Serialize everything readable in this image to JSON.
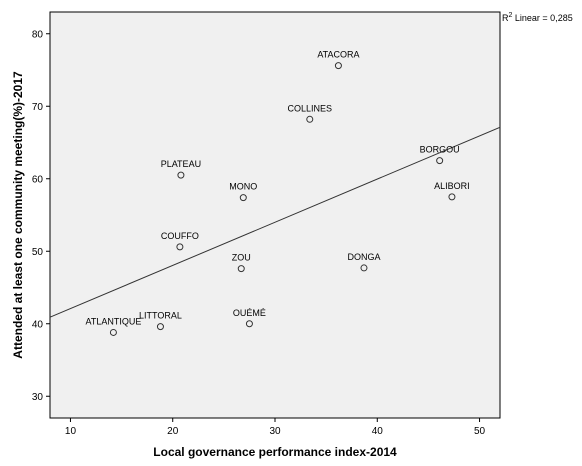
{
  "chart_data": {
    "type": "scatter",
    "title": "",
    "xlabel": "Local governance performance index-2014",
    "ylabel": "Attended at least one community meeting(%)-2017",
    "xlim": [
      8,
      52
    ],
    "ylim": [
      27,
      83
    ],
    "xticks": [
      10,
      20,
      30,
      40,
      50
    ],
    "yticks": [
      30,
      40,
      50,
      60,
      70,
      80
    ],
    "grid": false,
    "background": "#f0f0f0",
    "points": [
      {
        "label": "ATACORA",
        "x": 36.2,
        "y": 75.6
      },
      {
        "label": "COLLINES",
        "x": 33.4,
        "y": 68.2
      },
      {
        "label": "BORGOU",
        "x": 46.1,
        "y": 62.5
      },
      {
        "label": "PLATEAU",
        "x": 20.8,
        "y": 60.5
      },
      {
        "label": "MONO",
        "x": 26.9,
        "y": 57.4
      },
      {
        "label": "ALIBORI",
        "x": 47.3,
        "y": 57.5
      },
      {
        "label": "COUFFO",
        "x": 20.7,
        "y": 50.6
      },
      {
        "label": "ZOU",
        "x": 26.7,
        "y": 47.6
      },
      {
        "label": "DONGA",
        "x": 38.7,
        "y": 47.7
      },
      {
        "label": "OUÉMÉ",
        "x": 27.5,
        "y": 40.0
      },
      {
        "label": "LITTORAL",
        "x": 18.8,
        "y": 39.6
      },
      {
        "label": "ATLANTIQUE",
        "x": 14.2,
        "y": 38.8
      }
    ],
    "fit_line": {
      "type": "linear",
      "x": [
        8,
        52
      ],
      "y": [
        40.9,
        67.1
      ],
      "r2_label": "Linear = 0,285",
      "r2_prefix": "R",
      "r2_sup": "2"
    }
  }
}
